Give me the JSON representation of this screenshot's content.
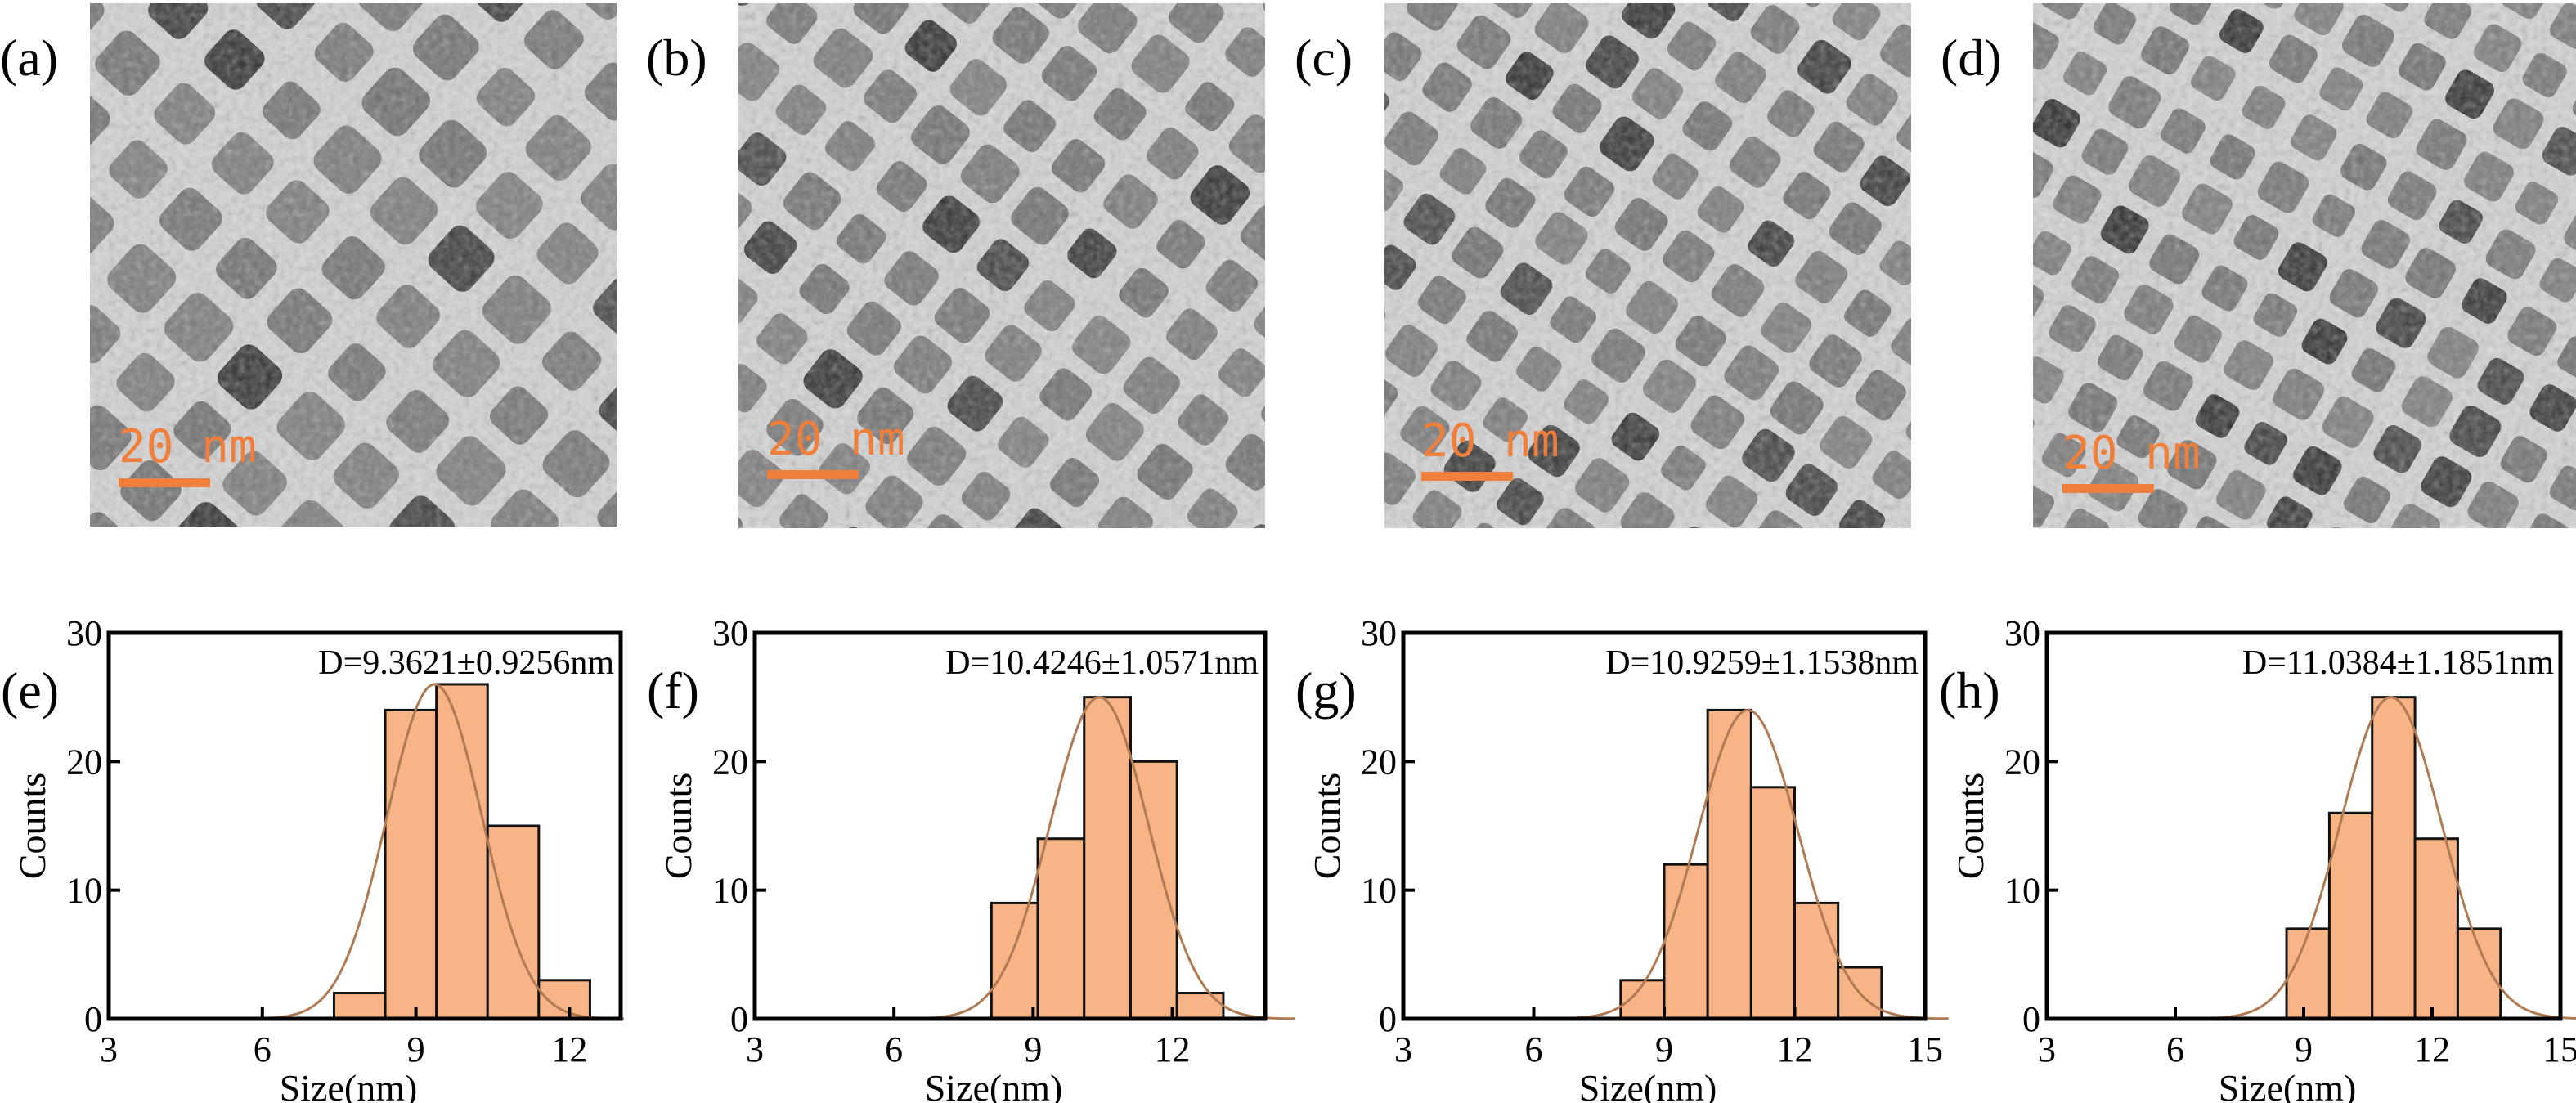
{
  "micrographs": [
    {
      "label": "(a)",
      "scale_bar": "20 nm"
    },
    {
      "label": "(b)",
      "scale_bar": "20 nm"
    },
    {
      "label": "(c)",
      "scale_bar": "20 nm"
    },
    {
      "label": "(d)",
      "scale_bar": "20 nm"
    }
  ],
  "colors": {
    "bar_fill": "#f6b487",
    "bar_edge": "#111111",
    "fit_line": "#b07a52",
    "scale_bar": "#f07f3c",
    "tem_mid": "#6f6f6f",
    "tem_light": "#d4d4d4",
    "tem_dark": "#2e2e2e"
  },
  "chart_data": [
    {
      "type": "bar",
      "panel_label": "(e)",
      "annotation": "D=9.3621±0.9256nm",
      "xlabel": "Size(nm)",
      "ylabel": "Counts",
      "xlim": [
        3,
        13
      ],
      "ylim": [
        0,
        30
      ],
      "xticks": [
        3,
        6,
        9,
        12
      ],
      "yticks": [
        0,
        10,
        20,
        30
      ],
      "bin_width": 1.0,
      "bin_starts": [
        7.4,
        8.4,
        9.4,
        10.4,
        11.4
      ],
      "values": [
        2,
        24,
        26,
        15,
        3
      ],
      "fit_mean": 9.3621,
      "fit_peak": 26,
      "fit_sigma": 0.9256
    },
    {
      "type": "bar",
      "panel_label": "(f)",
      "annotation": "D=10.4246±1.0571nm",
      "xlabel": "Size(nm)",
      "ylabel": "Counts",
      "xlim": [
        3,
        14
      ],
      "ylim": [
        0,
        30
      ],
      "xticks": [
        3,
        6,
        9,
        12
      ],
      "yticks": [
        0,
        10,
        20,
        30
      ],
      "bin_width": 1.0,
      "bin_starts": [
        8.1,
        9.1,
        10.1,
        11.1,
        12.1
      ],
      "values": [
        9,
        14,
        25,
        20,
        2
      ],
      "fit_mean": 10.4246,
      "fit_peak": 25,
      "fit_sigma": 1.0571
    },
    {
      "type": "bar",
      "panel_label": "(g)",
      "annotation": "D=10.9259±1.1538nm",
      "xlabel": "Size(nm)",
      "ylabel": "Counts",
      "xlim": [
        3,
        15
      ],
      "ylim": [
        0,
        30
      ],
      "xticks": [
        3,
        6,
        9,
        12,
        15
      ],
      "yticks": [
        0,
        10,
        20,
        30
      ],
      "bin_width": 1.0,
      "bin_starts": [
        8.0,
        9.0,
        10.0,
        11.0,
        12.0,
        13.0
      ],
      "values": [
        3,
        12,
        24,
        18,
        9,
        4
      ],
      "fit_mean": 10.9259,
      "fit_peak": 24,
      "fit_sigma": 1.1538
    },
    {
      "type": "bar",
      "panel_label": "(h)",
      "annotation": "D=11.0384±1.1851nm",
      "xlabel": "Size(nm)",
      "ylabel": "Counts",
      "xlim": [
        3,
        15
      ],
      "ylim": [
        0,
        30
      ],
      "xticks": [
        3,
        6,
        9,
        12,
        15
      ],
      "yticks": [
        0,
        10,
        20,
        30
      ],
      "bin_width": 1.0,
      "bin_starts": [
        8.6,
        9.6,
        10.6,
        11.6,
        12.6
      ],
      "values": [
        7,
        16,
        25,
        14,
        7
      ],
      "fit_mean": 11.0384,
      "fit_peak": 25,
      "fit_sigma": 1.1851
    }
  ]
}
